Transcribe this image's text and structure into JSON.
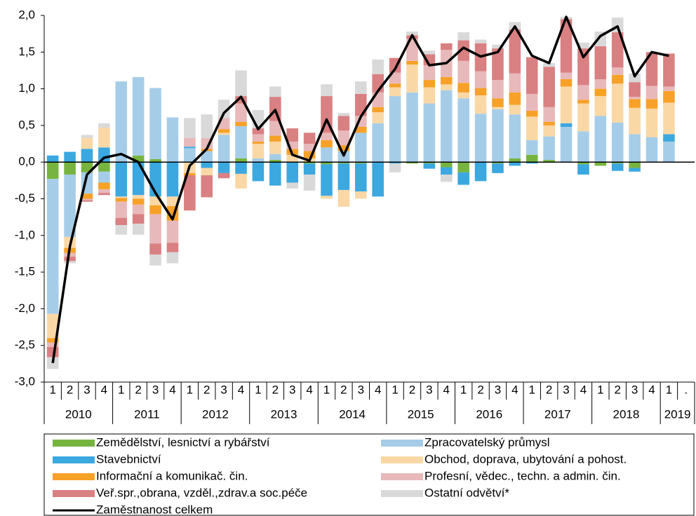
{
  "chart_data": {
    "type": "stacked_bar_line",
    "categories": [
      "1",
      "2",
      "3",
      "4",
      "1",
      "2",
      "3",
      "4",
      "1",
      "2",
      "3",
      "4",
      "1",
      "2",
      "3",
      "4",
      "1",
      "2",
      "3",
      "4",
      "1",
      "2",
      "3",
      "4",
      "1",
      "2",
      "3",
      "4",
      "1",
      "2",
      "3",
      "4",
      "1",
      "2",
      "3",
      "4",
      "1",
      "."
    ],
    "year_labels": [
      "2010",
      "2011",
      "2012",
      "2013",
      "2014",
      "2015",
      "2016",
      "2017",
      "2018",
      "2019"
    ],
    "ylim": [
      -3,
      2
    ],
    "yticks": [
      {
        "value": 2,
        "label": "2,0"
      },
      {
        "value": 1.5,
        "label": "1,5"
      },
      {
        "value": 1,
        "label": "1,0"
      },
      {
        "value": 0.5,
        "label": "0,5"
      },
      {
        "value": 0,
        "label": "0,0"
      },
      {
        "value": -0.5,
        "label": "-0,5"
      },
      {
        "value": -1,
        "label": "-1,0"
      },
      {
        "value": -1.5,
        "label": "-1,5"
      },
      {
        "value": -2,
        "label": "-2,0"
      },
      {
        "value": -2.5,
        "label": "-2,5"
      },
      {
        "value": -3,
        "label": "-3,0"
      }
    ],
    "series": [
      {
        "name": "Zemědělství, lesnictví a rybářství",
        "kind": "bar",
        "color": "#77b43f",
        "values": [
          -0.23,
          -0.17,
          -0.14,
          -0.13,
          0,
          0.09,
          0.04,
          0,
          0,
          0,
          0,
          0.05,
          0,
          0.03,
          0,
          -0.02,
          -0.03,
          -0.02,
          -0.02,
          0,
          0,
          -0.02,
          -0.02,
          -0.07,
          -0.14,
          0,
          -0.02,
          0.05,
          0.1,
          0.03,
          0,
          -0.03,
          -0.05,
          -0.02,
          -0.08,
          0,
          0,
          null
        ]
      },
      {
        "name": "Zpracovatelský průmysl",
        "kind": "bar",
        "color": "#a6cde8",
        "values": [
          -1.84,
          -0.85,
          -0.29,
          -0.15,
          1.1,
          1.07,
          0.97,
          0.61,
          0.19,
          0.15,
          0.37,
          0.44,
          0.05,
          0.08,
          0,
          0,
          0.2,
          0.15,
          0.4,
          0.53,
          0.9,
          0.95,
          0.8,
          0.98,
          0.87,
          0.66,
          0.72,
          0.6,
          0.2,
          0.32,
          0.48,
          0.42,
          0.63,
          0.54,
          0.38,
          0.34,
          0.28,
          null
        ]
      },
      {
        "name": "Stavebnictví",
        "kind": "bar",
        "color": "#3ba8e0",
        "values": [
          0.09,
          0.14,
          0.18,
          0.2,
          -0.47,
          -0.45,
          -0.47,
          -0.47,
          0.02,
          -0.08,
          -0.15,
          -0.16,
          -0.26,
          -0.32,
          -0.28,
          -0.15,
          -0.43,
          -0.36,
          -0.38,
          -0.47,
          -0.02,
          0,
          -0.07,
          -0.1,
          -0.17,
          -0.26,
          -0.13,
          -0.05,
          -0.02,
          0,
          0.05,
          -0.14,
          0,
          -0.1,
          -0.05,
          0,
          0.1,
          null
        ]
      },
      {
        "name": "Obchod, doprava, ubytování a pohost.",
        "kind": "bar",
        "color": "#fad8a6",
        "values": [
          -0.33,
          -0.15,
          0.15,
          0.27,
          -0.02,
          -0.05,
          -0.12,
          -0.13,
          -0.15,
          -0.1,
          0.03,
          -0.2,
          0.2,
          0.17,
          0.1,
          0.05,
          -0.04,
          -0.23,
          -0.1,
          0.15,
          0.12,
          0.38,
          0.22,
          0.08,
          0.08,
          0.25,
          0.03,
          0.13,
          0.32,
          0.15,
          0.5,
          0.38,
          0.27,
          0.53,
          0.36,
          0.39,
          0.43,
          null
        ]
      },
      {
        "name": "Informační a komunikač. čin.",
        "kind": "bar",
        "color": "#f7a128",
        "values": [
          -0.06,
          -0.07,
          -0.07,
          -0.09,
          -0.05,
          -0.08,
          -0.12,
          -0.2,
          -0.03,
          0.03,
          0.05,
          0.06,
          0.03,
          0.08,
          0.08,
          0.1,
          0.1,
          0.08,
          0.08,
          0.07,
          0.05,
          0.05,
          0.1,
          0.1,
          0.13,
          0.1,
          0.12,
          0.17,
          0.08,
          0.05,
          0.1,
          0.05,
          0.1,
          0.12,
          0.12,
          0.13,
          0.16,
          null
        ]
      },
      {
        "name": "Profesní, vědec., techn. a admin. čin.",
        "kind": "bar",
        "color": "#e8b9ba",
        "values": [
          -0.06,
          -0.05,
          -0.02,
          -0.05,
          -0.22,
          -0.13,
          -0.4,
          -0.3,
          0.12,
          0.15,
          0.15,
          0.25,
          0.1,
          0.2,
          0.1,
          0.1,
          0.1,
          0.2,
          0.15,
          0.2,
          0.15,
          0.3,
          0.2,
          0.37,
          0.3,
          0.23,
          0.25,
          0.26,
          0.23,
          0.2,
          0.09,
          0.2,
          0.13,
          0.1,
          0.03,
          0.18,
          0.06,
          null
        ]
      },
      {
        "name": "Veř.spr.,obrana, vzděl.,zdrav.a soc.péče",
        "kind": "bar",
        "color": "#d98082",
        "values": [
          -0.14,
          -0.06,
          -0.02,
          -0.03,
          -0.1,
          -0.13,
          -0.15,
          -0.13,
          -0.48,
          -0.3,
          -0.07,
          0.1,
          0.08,
          0.33,
          0.18,
          0.15,
          0.5,
          0.2,
          0.3,
          0.25,
          0.2,
          0.05,
          0.15,
          0.09,
          0.28,
          0.38,
          0.43,
          0.6,
          0.5,
          0.55,
          0.73,
          0.5,
          0.45,
          0.48,
          0.2,
          0.46,
          0.45,
          null
        ]
      },
      {
        "name": "Ostatní odvětví*",
        "kind": "bar",
        "color": "#d9d9d9",
        "values": [
          -0.16,
          -0.03,
          0.04,
          0.06,
          -0.13,
          -0.15,
          -0.15,
          -0.15,
          0.27,
          0.32,
          0.25,
          0.35,
          0.25,
          0.14,
          -0.08,
          -0.22,
          0.16,
          0.04,
          0.17,
          0.2,
          -0.12,
          0.05,
          0.05,
          -0.1,
          0.11,
          0.05,
          0.05,
          0.1,
          0,
          0.05,
          0.03,
          0.08,
          0.2,
          0.2,
          0.12,
          0,
          0,
          null
        ]
      },
      {
        "name": "Zaměstnanost celkem",
        "kind": "line",
        "color": "#000000",
        "values": [
          -2.74,
          -1.15,
          -0.17,
          0.06,
          0.11,
          0,
          -0.42,
          -0.78,
          -0.05,
          0.18,
          0.67,
          0.89,
          0.45,
          0.71,
          0.1,
          0.02,
          0.58,
          0.09,
          0.62,
          0.97,
          1.27,
          1.73,
          1.32,
          1.35,
          1.56,
          1.44,
          1.5,
          1.85,
          1.45,
          1.35,
          1.98,
          1.43,
          1.72,
          1.85,
          1.17,
          1.5,
          1.45,
          null
        ]
      }
    ]
  }
}
